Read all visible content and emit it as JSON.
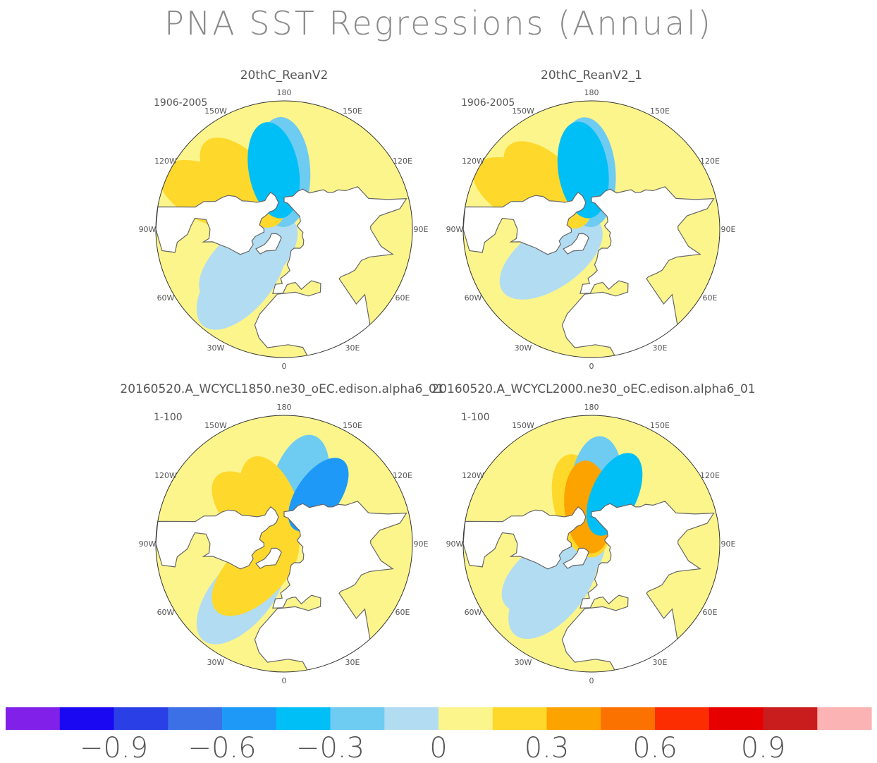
{
  "title": "PNA SST Regressions (Annual)",
  "chart_data": [
    {
      "type": "heatmap",
      "panel_title": "20thC_ReanV2",
      "period": "1906-2005",
      "projection": "north-polar-stereographic",
      "longitude_labels": [
        "180",
        "150E",
        "120E",
        "90E",
        "60E",
        "30E",
        "0",
        "30W",
        "60W",
        "90W",
        "120W",
        "150W"
      ],
      "field": "SST regression on PNA index (K)",
      "anomaly_blobs": [
        {
          "center_lon": -170,
          "center_lat": 40,
          "value": -0.35
        },
        {
          "center_lon": -178,
          "center_lat": 42,
          "value": -0.2
        },
        {
          "center_lon": -138,
          "center_lat": 38,
          "value": 0.2
        },
        {
          "center_lon": -115,
          "center_lat": 25,
          "value": 0.2
        },
        {
          "center_lon": -40,
          "center_lat": 35,
          "value": -0.1
        },
        {
          "center_lon": -50,
          "center_lat": 50,
          "value": -0.1
        }
      ]
    },
    {
      "type": "heatmap",
      "panel_title": "20thC_ReanV2_1",
      "period": "1906-2005",
      "projection": "north-polar-stereographic",
      "longitude_labels": [
        "180",
        "150E",
        "120E",
        "90E",
        "60E",
        "30E",
        "0",
        "30W",
        "60W",
        "90W",
        "120W",
        "150W"
      ],
      "field": "SST regression on PNA index (K)",
      "anomaly_blobs": [
        {
          "center_lon": -172,
          "center_lat": 40,
          "value": -0.35
        },
        {
          "center_lon": -176,
          "center_lat": 42,
          "value": -0.2
        },
        {
          "center_lon": -135,
          "center_lat": 38,
          "value": 0.2
        },
        {
          "center_lon": -118,
          "center_lat": 28,
          "value": 0.2
        },
        {
          "center_lon": -45,
          "center_lat": 38,
          "value": 0.05
        },
        {
          "center_lon": -55,
          "center_lat": 48,
          "value": -0.1
        }
      ]
    },
    {
      "type": "heatmap",
      "panel_title": "20160520.A_WCYCL1850.ne30_oEC.edison.alpha6_01",
      "period": "1-100",
      "projection": "north-polar-stereographic",
      "longitude_labels": [
        "180",
        "150E",
        "120E",
        "90E",
        "60E",
        "30E",
        "0",
        "30W",
        "60W",
        "90W",
        "120W",
        "150W"
      ],
      "field": "SST regression on PNA index (K)",
      "anomaly_blobs": [
        {
          "center_lon": 165,
          "center_lat": 42,
          "value": -0.2
        },
        {
          "center_lon": 145,
          "center_lat": 40,
          "value": -0.5
        },
        {
          "center_lon": -160,
          "center_lat": 56,
          "value": 0.25
        },
        {
          "center_lon": -135,
          "center_lat": 55,
          "value": 0.2
        },
        {
          "center_lon": -40,
          "center_lat": 35,
          "value": -0.1
        },
        {
          "center_lon": -45,
          "center_lat": 55,
          "value": 0.2
        }
      ]
    },
    {
      "type": "heatmap",
      "panel_title": "20160520.A_WCYCL2000.ne30_oEC.edison.alpha6_01",
      "period": "1-100",
      "projection": "north-polar-stereographic",
      "longitude_labels": [
        "180",
        "150E",
        "120E",
        "90E",
        "60E",
        "30E",
        "0",
        "30W",
        "60W",
        "90W",
        "120W",
        "150W"
      ],
      "field": "SST regression on PNA index (K)",
      "anomaly_blobs": [
        {
          "center_lon": 175,
          "center_lat": 42,
          "value": -0.3
        },
        {
          "center_lon": 155,
          "center_lat": 44,
          "value": -0.45
        },
        {
          "center_lon": -165,
          "center_lat": 56,
          "value": 0.25
        },
        {
          "center_lon": -175,
          "center_lat": 58,
          "value": 0.4
        },
        {
          "center_lon": -40,
          "center_lat": 40,
          "value": -0.1
        },
        {
          "center_lon": -55,
          "center_lat": 50,
          "value": -0.1
        }
      ]
    }
  ],
  "colorbar": {
    "levels": [
      -1.05,
      -0.9,
      -0.75,
      -0.6,
      -0.45,
      -0.3,
      -0.15,
      0,
      0.15,
      0.3,
      0.45,
      0.6,
      0.75,
      0.9,
      1.05
    ],
    "colors": [
      "#8020e8",
      "#1a08f2",
      "#2a3fe6",
      "#3b70e6",
      "#1e99f8",
      "#00bff6",
      "#6ecbf2",
      "#b1dcf2",
      "#fcf58c",
      "#fed82b",
      "#fca300",
      "#fc7200",
      "#fc2d00",
      "#e60000",
      "#c91d1d",
      "#fcb3b3"
    ],
    "tick_labels": [
      "−0.9",
      "−0.6",
      "−0.3",
      "0",
      "0.3",
      "0.6",
      "0.9"
    ]
  }
}
